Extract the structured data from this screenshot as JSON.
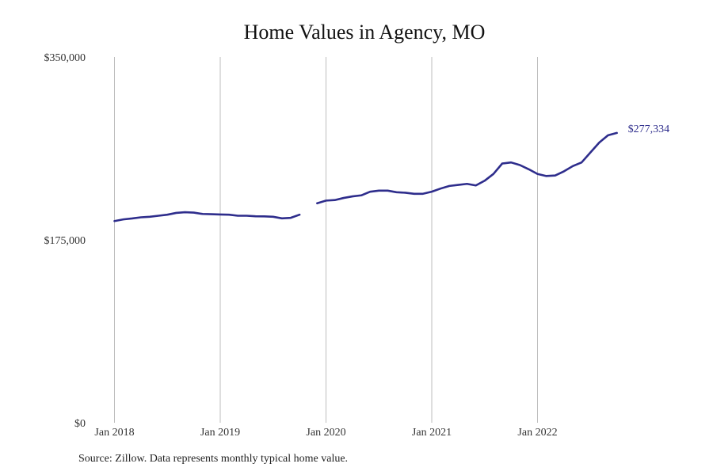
{
  "chart_data": {
    "type": "line",
    "title": "Home Values in Agency, MO",
    "source": "Source: Zillow. Data represents monthly typical home value.",
    "xlabel": "",
    "ylabel": "",
    "ylim": [
      0,
      350000
    ],
    "y_ticks": [
      {
        "value": 0,
        "label": "$0"
      },
      {
        "value": 175000,
        "label": "$175,000"
      },
      {
        "value": 350000,
        "label": "$350,000"
      }
    ],
    "x_ticks": [
      {
        "value": "2018-01",
        "label": "Jan 2018"
      },
      {
        "value": "2019-01",
        "label": "Jan 2019"
      },
      {
        "value": "2020-01",
        "label": "Jan 2020"
      },
      {
        "value": "2021-01",
        "label": "Jan 2021"
      },
      {
        "value": "2022-01",
        "label": "Jan 2022"
      }
    ],
    "grid": {
      "vertical": true,
      "horizontal": false
    },
    "line_color": "#2e2d8c",
    "end_label": "$277,334",
    "series": [
      {
        "values": [
          {
            "x": "2018-01",
            "y": 193000
          },
          {
            "x": "2018-02",
            "y": 194600
          },
          {
            "x": "2018-03",
            "y": 195500
          },
          {
            "x": "2018-04",
            "y": 196600
          },
          {
            "x": "2018-05",
            "y": 197100
          },
          {
            "x": "2018-06",
            "y": 198100
          },
          {
            "x": "2018-07",
            "y": 199100
          },
          {
            "x": "2018-08",
            "y": 200800
          },
          {
            "x": "2018-09",
            "y": 201500
          },
          {
            "x": "2018-10",
            "y": 201100
          },
          {
            "x": "2018-11",
            "y": 199800
          },
          {
            "x": "2018-12",
            "y": 199600
          },
          {
            "x": "2019-01",
            "y": 199300
          },
          {
            "x": "2019-02",
            "y": 199100
          },
          {
            "x": "2019-03",
            "y": 198100
          },
          {
            "x": "2019-04",
            "y": 198100
          },
          {
            "x": "2019-05",
            "y": 197600
          },
          {
            "x": "2019-06",
            "y": 197500
          },
          {
            "x": "2019-07",
            "y": 197100
          },
          {
            "x": "2019-08",
            "y": 195600
          },
          {
            "x": "2019-09",
            "y": 196100
          },
          {
            "x": "2019-10",
            "y": 199100
          },
          {
            "x": "2019-11",
            "y": null
          },
          {
            "x": "2019-12",
            "y": 210000
          },
          {
            "x": "2020-01",
            "y": 212600
          },
          {
            "x": "2020-02",
            "y": 213100
          },
          {
            "x": "2020-03",
            "y": 215100
          },
          {
            "x": "2020-04",
            "y": 216600
          },
          {
            "x": "2020-05",
            "y": 217600
          },
          {
            "x": "2020-06",
            "y": 221100
          },
          {
            "x": "2020-07",
            "y": 222100
          },
          {
            "x": "2020-08",
            "y": 222100
          },
          {
            "x": "2020-09",
            "y": 220600
          },
          {
            "x": "2020-10",
            "y": 220100
          },
          {
            "x": "2020-11",
            "y": 219100
          },
          {
            "x": "2020-12",
            "y": 219100
          },
          {
            "x": "2021-01",
            "y": 221100
          },
          {
            "x": "2021-02",
            "y": 224100
          },
          {
            "x": "2021-03",
            "y": 226600
          },
          {
            "x": "2021-04",
            "y": 227600
          },
          {
            "x": "2021-05",
            "y": 228600
          },
          {
            "x": "2021-06",
            "y": 227100
          },
          {
            "x": "2021-07",
            "y": 231600
          },
          {
            "x": "2021-08",
            "y": 238100
          },
          {
            "x": "2021-09",
            "y": 248100
          },
          {
            "x": "2021-10",
            "y": 249100
          },
          {
            "x": "2021-11",
            "y": 246600
          },
          {
            "x": "2021-12",
            "y": 242600
          },
          {
            "x": "2022-01",
            "y": 238100
          },
          {
            "x": "2022-02",
            "y": 236100
          },
          {
            "x": "2022-03",
            "y": 236600
          },
          {
            "x": "2022-04",
            "y": 240600
          },
          {
            "x": "2022-05",
            "y": 245600
          },
          {
            "x": "2022-06",
            "y": 249100
          },
          {
            "x": "2022-07",
            "y": 258600
          },
          {
            "x": "2022-08",
            "y": 268100
          },
          {
            "x": "2022-09",
            "y": 275100
          },
          {
            "x": "2022-10",
            "y": 277334
          }
        ]
      }
    ]
  }
}
